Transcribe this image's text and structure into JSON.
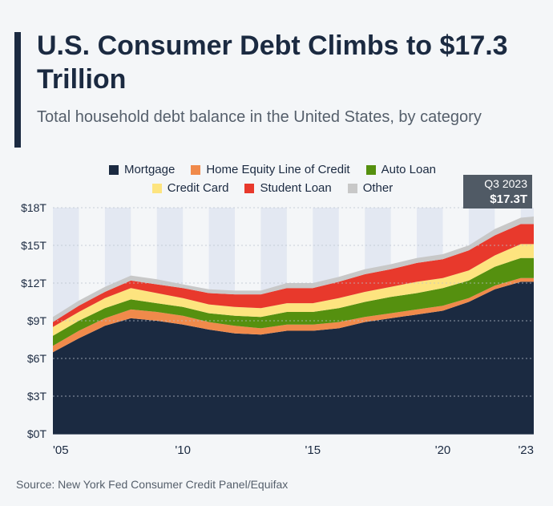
{
  "title": "U.S. Consumer Debt Climbs to $17.3 Trillion",
  "subtitle": "Total household debt balance in the United States, by category",
  "source": "Source: New York Fed Consumer Credit Panel/Equifax",
  "callout": {
    "label": "Q3 2023",
    "value": "$17.3T"
  },
  "colors": {
    "mortgage": "#1b2a41",
    "heloc": "#f08a4b",
    "auto": "#55900f",
    "credit_card": "#fde47f",
    "student": "#e8392c",
    "other": "#c8c8c8"
  },
  "chart_data": {
    "type": "area",
    "stacked": true,
    "xlabel": "",
    "ylabel": "",
    "ylim": [
      0,
      18
    ],
    "xlim": [
      2005.0,
      2023.5
    ],
    "y_ticks": [
      0,
      3,
      6,
      9,
      12,
      15,
      18
    ],
    "y_tick_labels": [
      "$0T",
      "$3T",
      "$6T",
      "$9T",
      "$12T",
      "$15T",
      "$18T"
    ],
    "x_ticks": [
      2005,
      2010,
      2015,
      2020,
      2023
    ],
    "x_tick_labels": [
      "'05",
      "'10",
      "'15",
      "'20",
      "'23"
    ],
    "grid": true,
    "legend_position": "top",
    "x": [
      2005.0,
      2006.0,
      2007.0,
      2008.0,
      2009.0,
      2010.0,
      2011.0,
      2012.0,
      2013.0,
      2014.0,
      2015.0,
      2016.0,
      2017.0,
      2018.0,
      2019.0,
      2020.0,
      2021.0,
      2022.0,
      2023.0,
      2023.5
    ],
    "series": [
      {
        "name": "Mortgage",
        "values": [
          6.5,
          7.6,
          8.6,
          9.2,
          9.0,
          8.7,
          8.3,
          8.0,
          7.9,
          8.2,
          8.2,
          8.4,
          8.9,
          9.2,
          9.5,
          9.8,
          10.5,
          11.5,
          12.1,
          12.1
        ]
      },
      {
        "name": "Home Equity Line of Credit",
        "values": [
          0.5,
          0.6,
          0.6,
          0.7,
          0.7,
          0.7,
          0.6,
          0.6,
          0.5,
          0.5,
          0.5,
          0.5,
          0.4,
          0.4,
          0.4,
          0.4,
          0.3,
          0.3,
          0.3,
          0.3
        ]
      },
      {
        "name": "Auto Loan",
        "values": [
          0.8,
          0.8,
          0.8,
          0.8,
          0.7,
          0.7,
          0.7,
          0.8,
          0.9,
          1.0,
          1.0,
          1.1,
          1.2,
          1.3,
          1.3,
          1.4,
          1.4,
          1.5,
          1.6,
          1.6
        ]
      },
      {
        "name": "Credit Card",
        "values": [
          0.7,
          0.7,
          0.8,
          0.9,
          0.8,
          0.7,
          0.7,
          0.7,
          0.7,
          0.7,
          0.7,
          0.8,
          0.8,
          0.8,
          0.9,
          0.8,
          0.8,
          0.9,
          1.1,
          1.1
        ]
      },
      {
        "name": "Student Loan",
        "values": [
          0.4,
          0.5,
          0.5,
          0.6,
          0.7,
          0.8,
          0.9,
          1.0,
          1.1,
          1.2,
          1.2,
          1.3,
          1.4,
          1.4,
          1.5,
          1.5,
          1.6,
          1.6,
          1.6,
          1.6
        ]
      },
      {
        "name": "Other",
        "values": [
          0.4,
          0.4,
          0.4,
          0.4,
          0.4,
          0.3,
          0.3,
          0.3,
          0.3,
          0.4,
          0.4,
          0.4,
          0.4,
          0.4,
          0.4,
          0.4,
          0.4,
          0.5,
          0.5,
          0.6
        ]
      }
    ]
  }
}
